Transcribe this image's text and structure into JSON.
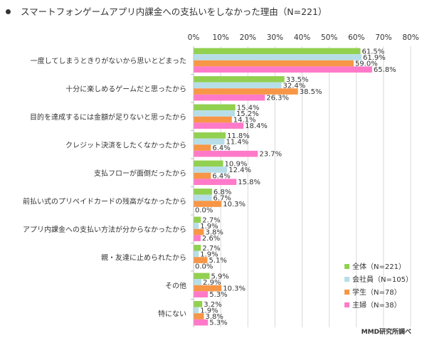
{
  "title": "スマートフォンゲームアプリ内課金への支払いをしなかった理由（N=221）",
  "source": "MMD研究所調べ",
  "chart_data": {
    "type": "bar",
    "orientation": "horizontal",
    "title": "スマートフォンゲームアプリ内課金への支払いをしなかった理由（N=221）",
    "xlim": [
      0,
      80
    ],
    "xticks": [
      0,
      10,
      20,
      30,
      40,
      50,
      60,
      70,
      80
    ],
    "tick_suffix": "%",
    "grid": true,
    "legend_position": "bottom-right",
    "categories": [
      "一度してしまうときりがないから思いとどまった",
      "十分に楽しめるゲームだと思ったから",
      "目的を達成するには金額が足りないと思ったから",
      "クレジット決済をしたくなかったから",
      "支払フローが面倒だったから",
      "前払い式のプリペイドカードの残高がなかったから",
      "アプリ内課金への支払い方法が分からなかったから",
      "親・友達に止められたから",
      "その他",
      "特にない"
    ],
    "series": [
      {
        "name": "全体（N=221）",
        "color": "#92d050",
        "values": [
          61.5,
          33.5,
          15.4,
          11.8,
          10.9,
          6.8,
          2.7,
          2.7,
          5.9,
          3.2
        ]
      },
      {
        "name": "会社員（N=105）",
        "color": "#b7dee8",
        "values": [
          61.9,
          32.4,
          15.2,
          11.4,
          12.4,
          6.7,
          1.9,
          1.9,
          2.9,
          1.9
        ]
      },
      {
        "name": "学生（N=78）",
        "color": "#f79646",
        "values": [
          59.0,
          38.5,
          14.1,
          6.4,
          6.4,
          10.3,
          3.8,
          5.1,
          10.3,
          3.8
        ]
      },
      {
        "name": "主婦（N=38）",
        "color": "#ff79c9",
        "values": [
          65.8,
          26.3,
          18.4,
          23.7,
          15.8,
          0.0,
          2.6,
          0.0,
          5.3,
          5.3
        ]
      }
    ]
  }
}
